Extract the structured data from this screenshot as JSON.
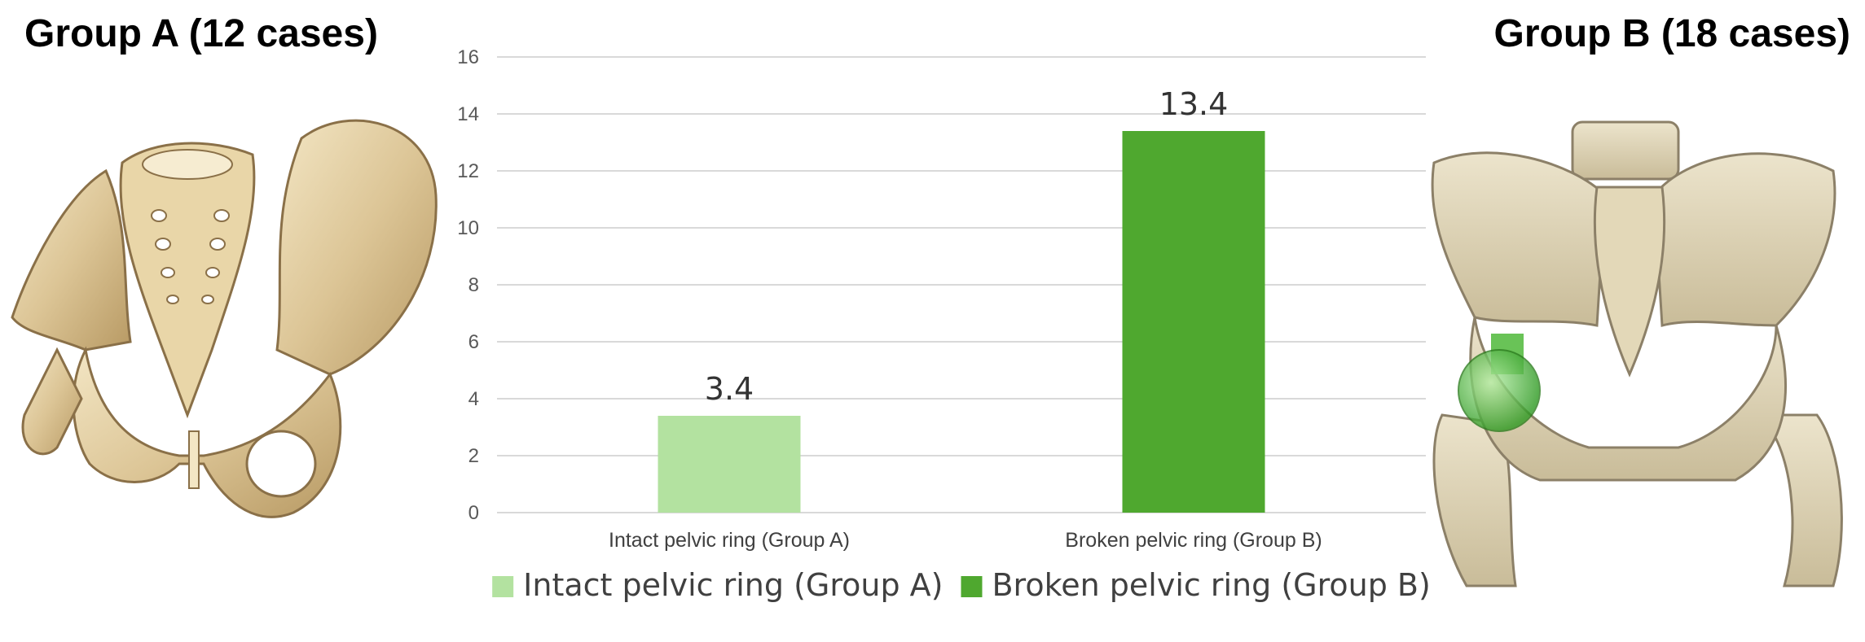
{
  "panels": {
    "left_title": "Group A (12 cases)",
    "right_title": "Group B (18 cases)"
  },
  "chart_data": {
    "type": "bar",
    "categories": [
      "Intact pelvic ring (Group A)",
      "Broken pelvic ring (Group B)"
    ],
    "values": [
      3.4,
      13.4
    ],
    "data_labels": [
      "3.4",
      "13.4"
    ],
    "colors": [
      "#b3e2a0",
      "#4fa82f"
    ],
    "ylim": [
      0,
      16
    ],
    "yticks": [
      0,
      2,
      4,
      6,
      8,
      10,
      12,
      14,
      16
    ],
    "grid": true,
    "legend": {
      "position": "bottom",
      "entries": [
        {
          "label": "Intact pelvic ring (Group A)",
          "color": "#b3e2a0"
        },
        {
          "label": "Broken pelvic ring (Group B)",
          "color": "#4fa82f"
        }
      ]
    },
    "title": "",
    "xlabel": "",
    "ylabel": ""
  },
  "illustrations": {
    "left": "intact-pelvis-illustration",
    "right": "fractured-pelvis-3d-ct-with-implant"
  }
}
